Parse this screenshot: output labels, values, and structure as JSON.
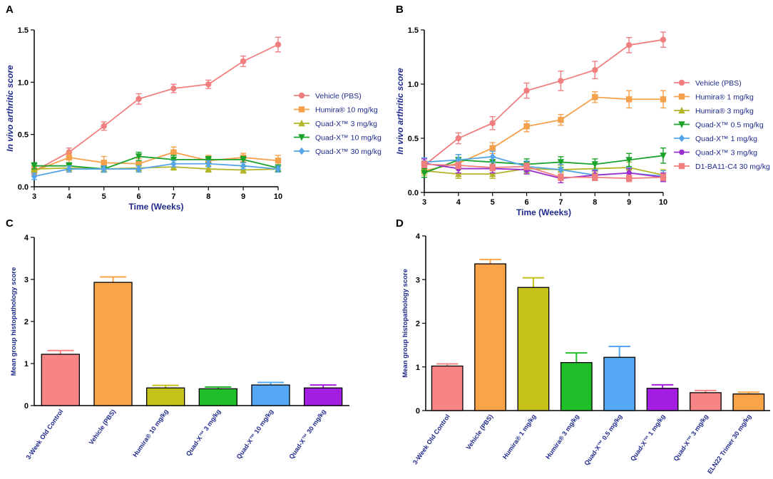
{
  "panel_letters": {
    "A": "A",
    "B": "B",
    "C": "C",
    "D": "D"
  },
  "chart_data": [
    {
      "panel": "A",
      "type": "line",
      "ylabel": "In vivo arthritic score",
      "xlabel": "Time (Weeks)",
      "xlim": [
        3,
        10
      ],
      "ylim": [
        0,
        1.5
      ],
      "xticks": [
        "3",
        "4",
        "5",
        "6",
        "7",
        "8",
        "9",
        "10"
      ],
      "yticks": [
        "0.0",
        "0.5",
        "1.0",
        "1.5"
      ],
      "x": [
        3,
        4,
        5,
        6,
        7,
        8,
        9,
        10
      ],
      "series": [
        {
          "name": "Vehicle (PBS)",
          "color": "#f07f7f",
          "marker": "circle",
          "values": [
            0.15,
            0.33,
            0.58,
            0.84,
            0.94,
            0.98,
            1.2,
            1.36
          ],
          "errors": [
            0.03,
            0.04,
            0.04,
            0.05,
            0.04,
            0.04,
            0.05,
            0.07
          ]
        },
        {
          "name": "Humira® 10 mg/kg",
          "color": "#f5a04a",
          "marker": "square",
          "values": [
            0.15,
            0.28,
            0.23,
            0.22,
            0.33,
            0.25,
            0.28,
            0.25
          ],
          "errors": [
            0.04,
            0.05,
            0.06,
            0.05,
            0.05,
            0.05,
            0.04,
            0.05
          ]
        },
        {
          "name": "Quad-X™ 3 mg/kg",
          "color": "#b5b52a",
          "marker": "triangle-up",
          "values": [
            0.17,
            0.18,
            0.17,
            0.18,
            0.19,
            0.17,
            0.16,
            0.17
          ],
          "errors": [
            0.03,
            0.03,
            0.03,
            0.03,
            0.03,
            0.03,
            0.03,
            0.03
          ]
        },
        {
          "name": "Quad-X™ 10 mg/kg",
          "color": "#1aa32a",
          "marker": "triangle-down",
          "values": [
            0.2,
            0.2,
            0.17,
            0.29,
            0.26,
            0.26,
            0.26,
            0.18
          ],
          "errors": [
            0.03,
            0.03,
            0.03,
            0.04,
            0.04,
            0.03,
            0.03,
            0.03
          ]
        },
        {
          "name": "Quad-X™ 30 mg/kg",
          "color": "#55a5e8",
          "marker": "diamond",
          "values": [
            0.1,
            0.17,
            0.17,
            0.17,
            0.22,
            0.22,
            0.2,
            0.17
          ],
          "errors": [
            0.03,
            0.03,
            0.03,
            0.03,
            0.03,
            0.03,
            0.03,
            0.03
          ]
        }
      ]
    },
    {
      "panel": "B",
      "type": "line",
      "ylabel": "In vivo arthritic score",
      "xlabel": "Time (Weeks)",
      "xlim": [
        3,
        10
      ],
      "ylim": [
        0,
        1.5
      ],
      "xticks": [
        "3",
        "4",
        "5",
        "6",
        "7",
        "8",
        "9",
        "10"
      ],
      "yticks": [
        "0.0",
        "0.5",
        "1.0",
        "1.5"
      ],
      "x": [
        3,
        4,
        5,
        6,
        7,
        8,
        9,
        10
      ],
      "series": [
        {
          "name": "Vehicle (PBS)",
          "color": "#f07f7f",
          "marker": "circle",
          "values": [
            0.25,
            0.5,
            0.64,
            0.94,
            1.03,
            1.13,
            1.36,
            1.41
          ],
          "errors": [
            0.04,
            0.05,
            0.06,
            0.07,
            0.09,
            0.08,
            0.07,
            0.07
          ]
        },
        {
          "name": "Humira® 1 mg/kg",
          "color": "#f5a04a",
          "marker": "square",
          "values": [
            0.2,
            0.27,
            0.41,
            0.61,
            0.67,
            0.88,
            0.86,
            0.86
          ],
          "errors": [
            0.04,
            0.05,
            0.05,
            0.05,
            0.05,
            0.05,
            0.08,
            0.08
          ]
        },
        {
          "name": "Humira® 3 mg/kg",
          "color": "#b5b52a",
          "marker": "triangle-up",
          "values": [
            0.2,
            0.17,
            0.17,
            0.22,
            0.21,
            0.22,
            0.23,
            0.16
          ],
          "errors": [
            0.04,
            0.04,
            0.04,
            0.04,
            0.04,
            0.04,
            0.05,
            0.05
          ]
        },
        {
          "name": "Quad-X™ 0.5 mg/kg",
          "color": "#1aa32a",
          "marker": "triangle-down",
          "values": [
            0.18,
            0.3,
            0.28,
            0.26,
            0.28,
            0.26,
            0.3,
            0.34
          ],
          "errors": [
            0.04,
            0.05,
            0.05,
            0.05,
            0.05,
            0.05,
            0.06,
            0.07
          ]
        },
        {
          "name": "Quad-X™ 1 mg/kg",
          "color": "#55a5e8",
          "marker": "diamond",
          "values": [
            0.28,
            0.3,
            0.33,
            0.24,
            0.21,
            0.16,
            0.18,
            0.15
          ],
          "errors": [
            0.04,
            0.05,
            0.05,
            0.05,
            0.05,
            0.05,
            0.05,
            0.05
          ]
        },
        {
          "name": "Quad-X™ 3 mg/kg",
          "color": "#9b2ecf",
          "marker": "hexagon",
          "values": [
            0.27,
            0.22,
            0.22,
            0.21,
            0.13,
            0.16,
            0.18,
            0.14
          ],
          "errors": [
            0.04,
            0.04,
            0.04,
            0.04,
            0.04,
            0.04,
            0.04,
            0.04
          ]
        },
        {
          "name": "D1-BA11-C4 30 mg/kg",
          "color": "#f07f7f",
          "marker": "square",
          "values": [
            0.26,
            0.25,
            0.23,
            0.24,
            0.14,
            0.14,
            0.13,
            0.14
          ],
          "errors": [
            0.03,
            0.03,
            0.03,
            0.03,
            0.03,
            0.03,
            0.03,
            0.03
          ]
        }
      ]
    },
    {
      "panel": "C",
      "type": "bar",
      "ylabel": "Mean group histopathology score",
      "ylim": [
        0,
        4
      ],
      "yticks": [
        "0",
        "1",
        "2",
        "3",
        "4"
      ],
      "categories": [
        "3-Week Old Control",
        "Vehicle (PBS)",
        "Humira® 10 mg/kg",
        "Quad-X™ 3 mg/kg",
        "Quad-X™ 10 mg/kg",
        "Quad-X™ 30 mg/kg"
      ],
      "values": [
        1.22,
        2.93,
        0.42,
        0.4,
        0.49,
        0.42
      ],
      "errors": [
        0.09,
        0.13,
        0.06,
        0.04,
        0.06,
        0.07
      ],
      "colors": [
        "#f78585",
        "#f9a449",
        "#c5c21b",
        "#1fbf2a",
        "#55a8f4",
        "#a31ee0"
      ]
    },
    {
      "panel": "D",
      "type": "bar",
      "ylabel": "Mean group histopathology score",
      "ylim": [
        0,
        4
      ],
      "yticks": [
        "0",
        "1",
        "2",
        "3",
        "4"
      ],
      "categories": [
        "3-Week Old Control",
        "Vehicle (PBS)",
        "Humira® 1 mg/kg",
        "Humira® 3 mg/kg",
        "Quad-X™ 0.5 mg/kg",
        "Quad-X™ 1 mg/kg",
        "Quad-X™ 3 mg/kg",
        "ELN22 Trimer 30 mg/kg"
      ],
      "values": [
        1.02,
        3.36,
        2.82,
        1.1,
        1.22,
        0.51,
        0.41,
        0.38
      ],
      "errors": [
        0.05,
        0.1,
        0.22,
        0.22,
        0.25,
        0.08,
        0.05,
        0.04
      ],
      "colors": [
        "#f78585",
        "#f9a449",
        "#c5c21b",
        "#1fbf2a",
        "#55a8f4",
        "#a31ee0",
        "#f78585",
        "#f9a449"
      ]
    }
  ]
}
